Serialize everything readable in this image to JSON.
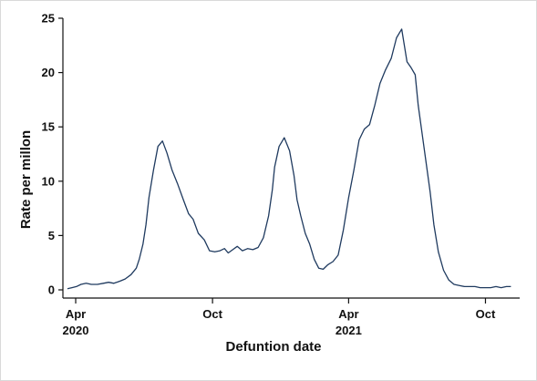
{
  "chart_data": {
    "type": "line",
    "title": "",
    "xlabel": "Defuntion date",
    "ylabel": "Rate per millon",
    "ylim": [
      0,
      25
    ],
    "grid": false,
    "legend": "none",
    "y_ticks": [
      0,
      5,
      10,
      15,
      20,
      25
    ],
    "x_ticks": [
      {
        "date": "2020-04-01",
        "label1": "Apr",
        "label2": "2020"
      },
      {
        "date": "2020-10-01",
        "label1": "Oct",
        "label2": ""
      },
      {
        "date": "2021-04-01",
        "label1": "Apr",
        "label2": "2021"
      },
      {
        "date": "2021-10-01",
        "label1": "Oct",
        "label2": ""
      }
    ],
    "xlim": [
      "2020-03-21",
      "2021-11-06"
    ],
    "colors": {
      "line": "#1f3a5f",
      "axis": "#111111"
    },
    "series": [
      {
        "x": [
          "2020-03-21",
          "2020-03-27",
          "2020-04-02",
          "2020-04-08",
          "2020-04-15",
          "2020-04-22",
          "2020-04-30",
          "2020-05-08",
          "2020-05-15",
          "2020-05-22",
          "2020-05-30",
          "2020-06-06",
          "2020-06-14",
          "2020-06-21",
          "2020-06-25",
          "2020-06-30",
          "2020-07-04",
          "2020-07-08",
          "2020-07-14",
          "2020-07-20",
          "2020-07-26",
          "2020-08-01",
          "2020-08-08",
          "2020-08-15",
          "2020-08-23",
          "2020-08-30",
          "2020-09-05",
          "2020-09-12",
          "2020-09-20",
          "2020-09-27",
          "2020-10-04",
          "2020-10-11",
          "2020-10-17",
          "2020-10-22",
          "2020-10-28",
          "2020-11-03",
          "2020-11-10",
          "2020-11-17",
          "2020-11-24",
          "2020-12-01",
          "2020-12-08",
          "2020-12-15",
          "2020-12-20",
          "2020-12-23",
          "2020-12-29",
          "2021-01-05",
          "2021-01-12",
          "2021-01-18",
          "2021-01-22",
          "2021-01-27",
          "2021-02-02",
          "2021-02-08",
          "2021-02-14",
          "2021-02-20",
          "2021-02-26",
          "2021-03-04",
          "2021-03-11",
          "2021-03-18",
          "2021-03-25",
          "2021-04-01",
          "2021-04-08",
          "2021-04-15",
          "2021-04-22",
          "2021-04-29",
          "2021-05-06",
          "2021-05-13",
          "2021-05-20",
          "2021-05-28",
          "2021-06-04",
          "2021-06-11",
          "2021-06-18",
          "2021-06-23",
          "2021-06-29",
          "2021-07-03",
          "2021-07-08",
          "2021-07-13",
          "2021-07-19",
          "2021-07-24",
          "2021-07-30",
          "2021-08-06",
          "2021-08-13",
          "2021-08-20",
          "2021-08-27",
          "2021-09-03",
          "2021-09-10",
          "2021-09-17",
          "2021-09-24",
          "2021-10-01",
          "2021-10-08",
          "2021-10-15",
          "2021-10-22",
          "2021-10-29",
          "2021-11-04"
        ],
        "values": [
          0.1,
          0.2,
          0.3,
          0.5,
          0.6,
          0.5,
          0.5,
          0.6,
          0.7,
          0.6,
          0.8,
          1.0,
          1.4,
          2.0,
          2.8,
          4.2,
          6.0,
          8.5,
          11.0,
          13.2,
          13.7,
          12.6,
          11.0,
          9.8,
          8.3,
          7.0,
          6.5,
          5.2,
          4.6,
          3.6,
          3.5,
          3.6,
          3.8,
          3.4,
          3.7,
          4.0,
          3.6,
          3.8,
          3.7,
          3.9,
          4.8,
          6.8,
          9.2,
          11.3,
          13.2,
          14.0,
          12.8,
          10.5,
          8.3,
          6.8,
          5.2,
          4.2,
          2.8,
          2.0,
          1.9,
          2.3,
          2.6,
          3.2,
          5.5,
          8.5,
          11.0,
          13.8,
          14.8,
          15.2,
          17.0,
          19.0,
          20.2,
          21.3,
          23.2,
          24.0,
          21.0,
          20.5,
          19.8,
          17.0,
          14.5,
          12.0,
          9.0,
          6.0,
          3.5,
          1.8,
          0.9,
          0.5,
          0.4,
          0.3,
          0.3,
          0.3,
          0.2,
          0.2,
          0.2,
          0.3,
          0.2,
          0.3,
          0.3
        ]
      }
    ]
  }
}
